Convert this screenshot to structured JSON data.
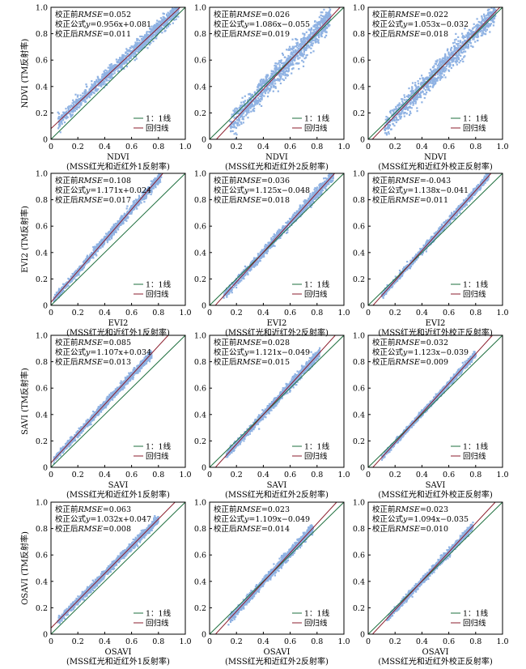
{
  "colors": {
    "scatter": "#8fb2e3",
    "regression": "#8b1d2c",
    "identity": "#1e6f3e",
    "axis": "#000000"
  },
  "chart_data": [
    {
      "type": "scatter",
      "ylabel": "NDVI (TM反射率)",
      "xlabel": "NDVI",
      "xlabel2": "(MSS红光和近红外1反射率)",
      "xlim": [
        0,
        1
      ],
      "ylim": [
        0,
        1
      ],
      "xticks": [
        "0",
        "0.2",
        "0.4",
        "0.6",
        "0.8",
        "1.0"
      ],
      "yticks": [
        "0",
        "0.2",
        "0.4",
        "0.6",
        "0.8",
        "1.0"
      ],
      "ann": [
        {
          "pre": "校正前",
          "em": "RMSE",
          "post": "=0.052"
        },
        {
          "pre": "校正公式",
          "em": "y",
          "post": "=0.956x+0.081"
        },
        {
          "pre": "校正后",
          "em": "RMSE",
          "post": "=0.011"
        }
      ],
      "legend": [
        "1：1线",
        "回归线"
      ],
      "slope": 0.956,
      "intercept": 0.081,
      "cloud": [
        [
          0.05,
          0.06
        ],
        [
          0.95,
          0.06
        ]
      ]
    },
    {
      "type": "scatter",
      "ylabel": "",
      "xlabel": "NDVI",
      "xlabel2": "(MSS红光和近红外2反射率)",
      "xlim": [
        0,
        1
      ],
      "ylim": [
        0,
        1
      ],
      "xticks": [
        "0",
        "0.2",
        "0.4",
        "0.6",
        "0.8",
        "1.0"
      ],
      "yticks": [
        "0",
        "0.2",
        "0.4",
        "0.6",
        "0.8",
        "1.0"
      ],
      "ann": [
        {
          "pre": "校正前",
          "em": "RMSE",
          "post": "=0.026"
        },
        {
          "pre": "校正公式",
          "em": "y",
          "post": "=1.086x−0.055"
        },
        {
          "pre": "校正后",
          "em": "RMSE",
          "post": "=0.019"
        }
      ],
      "legend": [
        "1：1线",
        "回归线"
      ],
      "slope": 1.086,
      "intercept": -0.055,
      "cloud": [
        [
          0.15,
          0.1
        ],
        [
          0.9,
          0.1
        ]
      ]
    },
    {
      "type": "scatter",
      "ylabel": "",
      "xlabel": "NDVI",
      "xlabel2": "(MSS红光和近红外校正反射率)",
      "xlim": [
        0,
        1
      ],
      "ylim": [
        0,
        1
      ],
      "xticks": [
        "0",
        "0.2",
        "0.4",
        "0.6",
        "0.8",
        "1.0"
      ],
      "yticks": [
        "0",
        "0.2",
        "0.4",
        "0.6",
        "0.8",
        "1.0"
      ],
      "ann": [
        {
          "pre": "校正前",
          "em": "RMSE",
          "post": "=0.022"
        },
        {
          "pre": "校正公式",
          "em": "y",
          "post": "=1.053x−0.032"
        },
        {
          "pre": "校正后",
          "em": "RMSE",
          "post": "=0.018"
        }
      ],
      "legend": [
        "1：1线",
        "回归线"
      ],
      "slope": 1.053,
      "intercept": -0.032,
      "cloud": [
        [
          0.12,
          0.09
        ],
        [
          0.95,
          0.09
        ]
      ]
    },
    {
      "type": "scatter",
      "ylabel": "EVI2 (TM反射率)",
      "xlabel": "EVI2",
      "xlabel2": "(MSS红光和近红外1反射率)",
      "xlim": [
        0,
        1
      ],
      "ylim": [
        0,
        1
      ],
      "xticks": [
        "0",
        "0.2",
        "0.4",
        "0.6",
        "0.8",
        "1.0"
      ],
      "yticks": [
        "0",
        "0.2",
        "0.4",
        "0.6",
        "0.8",
        "1.0"
      ],
      "ann": [
        {
          "pre": "校正前",
          "em": "RMSE",
          "post": "=0.108"
        },
        {
          "pre": "校正公式",
          "em": "y",
          "post": "=1.171x+0.024"
        },
        {
          "pre": "校正后",
          "em": "RMSE",
          "post": "=0.017"
        }
      ],
      "legend": [
        "1：1线",
        "回归线"
      ],
      "slope": 1.171,
      "intercept": 0.024,
      "cloud": [
        [
          0.02,
          0.03
        ],
        [
          0.82,
          0.04
        ]
      ]
    },
    {
      "type": "scatter",
      "ylabel": "",
      "xlabel": "EVI2",
      "xlabel2": "(MSS红光和近红外2反射率)",
      "xlim": [
        0,
        1
      ],
      "ylim": [
        0,
        1
      ],
      "xticks": [
        "0",
        "0.2",
        "0.4",
        "0.6",
        "0.8",
        "1.0"
      ],
      "yticks": [
        "0",
        "0.2",
        "0.4",
        "0.6",
        "0.8",
        "1.0"
      ],
      "ann": [
        {
          "pre": "校正前",
          "em": "RMSE",
          "post": "=0.036"
        },
        {
          "pre": "校正公式",
          "em": "y",
          "post": "=1.125x−0.048"
        },
        {
          "pre": "校正后",
          "em": "RMSE",
          "post": "=0.018"
        }
      ],
      "legend": [
        "1：1线",
        "回归线"
      ],
      "slope": 1.125,
      "intercept": -0.048,
      "cloud": [
        [
          0.1,
          0.035
        ],
        [
          0.92,
          0.045
        ]
      ]
    },
    {
      "type": "scatter",
      "ylabel": "",
      "xlabel": "EVI2",
      "xlabel2": "(MSS红光和近红外校正反射率)",
      "xlim": [
        0,
        1
      ],
      "ylim": [
        0,
        1
      ],
      "xticks": [
        "0",
        "0.2",
        "0.4",
        "0.6",
        "0.8",
        "1.0"
      ],
      "yticks": [
        "0",
        "0.2",
        "0.4",
        "0.6",
        "0.8",
        "1.0"
      ],
      "ann": [
        {
          "pre": "校正前",
          "em": "RMSE",
          "post": "=-0.043"
        },
        {
          "pre": "校正公式",
          "em": "y",
          "post": "=1.138x−0.041"
        },
        {
          "pre": "校正后",
          "em": "RMSE",
          "post": "=0.011"
        }
      ],
      "legend": [
        "1：1线",
        "回归线"
      ],
      "slope": 1.138,
      "intercept": -0.041,
      "cloud": [
        [
          0.1,
          0.025
        ],
        [
          0.9,
          0.03
        ]
      ]
    },
    {
      "type": "scatter",
      "ylabel": "SAVI (TM反射率)",
      "xlabel": "SAVI",
      "xlabel2": "(MSS红光和近红外1反射率)",
      "xlim": [
        0,
        1
      ],
      "ylim": [
        0,
        1
      ],
      "xticks": [
        "0",
        "0.2",
        "0.4",
        "0.6",
        "0.8",
        "1.0"
      ],
      "yticks": [
        "0",
        "0.2",
        "0.4",
        "0.6",
        "0.8",
        "1.0"
      ],
      "ann": [
        {
          "pre": "校正前",
          "em": "RMSE",
          "post": "=0.085"
        },
        {
          "pre": "校正公式",
          "em": "y",
          "post": "=1.107x+0.034"
        },
        {
          "pre": "校正后",
          "em": "RMSE",
          "post": "=0.013"
        }
      ],
      "legend": [
        "1：1线",
        "回归线"
      ],
      "slope": 1.107,
      "intercept": 0.034,
      "cloud": [
        [
          0.02,
          0.025
        ],
        [
          0.75,
          0.035
        ]
      ]
    },
    {
      "type": "scatter",
      "ylabel": "",
      "xlabel": "SAVI",
      "xlabel2": "(MSS红光和近红外2反射率)",
      "xlim": [
        0,
        1
      ],
      "ylim": [
        0,
        1
      ],
      "xticks": [
        "0",
        "0.2",
        "0.4",
        "0.6",
        "0.8",
        "1.0"
      ],
      "yticks": [
        "0",
        "0.2",
        "0.4",
        "0.6",
        "0.8",
        "1.0"
      ],
      "ann": [
        {
          "pre": "校正前",
          "em": "RMSE",
          "post": "=0.028"
        },
        {
          "pre": "校正公式",
          "em": "y",
          "post": "=1.121x−0.049"
        },
        {
          "pre": "校正后",
          "em": "RMSE",
          "post": "=0.015"
        }
      ],
      "legend": [
        "1：1线",
        "回归线"
      ],
      "slope": 1.121,
      "intercept": -0.049,
      "cloud": [
        [
          0.12,
          0.03
        ],
        [
          0.82,
          0.04
        ]
      ]
    },
    {
      "type": "scatter",
      "ylabel": "",
      "xlabel": "SAVI",
      "xlabel2": "(MSS红光和近红外校正反射率)",
      "xlim": [
        0,
        1
      ],
      "ylim": [
        0,
        1
      ],
      "xticks": [
        "0",
        "0.2",
        "0.4",
        "0.6",
        "0.8",
        "1.0"
      ],
      "yticks": [
        "0",
        "0.2",
        "0.4",
        "0.6",
        "0.8",
        "1.0"
      ],
      "ann": [
        {
          "pre": "校正前",
          "em": "RMSE",
          "post": "=0.032"
        },
        {
          "pre": "校正公式",
          "em": "y",
          "post": "=1.123x−0.039"
        },
        {
          "pre": "校正后",
          "em": "RMSE",
          "post": "=0.009"
        }
      ],
      "legend": [
        "1：1线",
        "回归线"
      ],
      "slope": 1.123,
      "intercept": -0.039,
      "cloud": [
        [
          0.1,
          0.02
        ],
        [
          0.8,
          0.025
        ]
      ]
    },
    {
      "type": "scatter",
      "ylabel": "OSAVI (TM反射率)",
      "xlabel": "OSAVI",
      "xlabel2": "(MSS红光和近红外1反射率)",
      "xlim": [
        0,
        1
      ],
      "ylim": [
        0,
        1
      ],
      "xticks": [
        "0",
        "0.2",
        "0.4",
        "0.6",
        "0.8",
        "1.0"
      ],
      "yticks": [
        "0",
        "0.2",
        "0.4",
        "0.6",
        "0.8",
        "1.0"
      ],
      "ann": [
        {
          "pre": "校正前",
          "em": "RMSE",
          "post": "=0.063"
        },
        {
          "pre": "校正公式",
          "em": "y",
          "post": "=1.032x+0.047"
        },
        {
          "pre": "校正后",
          "em": "RMSE",
          "post": "=0.008"
        }
      ],
      "legend": [
        "1：1线",
        "回归线"
      ],
      "slope": 1.032,
      "intercept": 0.047,
      "cloud": [
        [
          0.05,
          0.03
        ],
        [
          0.8,
          0.035
        ]
      ]
    },
    {
      "type": "scatter",
      "ylabel": "",
      "xlabel": "OSAVI",
      "xlabel2": "(MSS红光和近红外2反射率)",
      "xlim": [
        0,
        1
      ],
      "ylim": [
        0,
        1
      ],
      "xticks": [
        "0",
        "0.2",
        "0.4",
        "0.6",
        "0.8",
        "1.0"
      ],
      "yticks": [
        "0",
        "0.2",
        "0.4",
        "0.6",
        "0.8",
        "1.0"
      ],
      "ann": [
        {
          "pre": "校正前",
          "em": "RMSE",
          "post": "=0.023"
        },
        {
          "pre": "校正公式",
          "em": "y",
          "post": "=1.109x−0.049"
        },
        {
          "pre": "校正后",
          "em": "RMSE",
          "post": "=0.014"
        }
      ],
      "legend": [
        "1：1线",
        "回归线"
      ],
      "slope": 1.109,
      "intercept": -0.049,
      "cloud": [
        [
          0.14,
          0.03
        ],
        [
          0.77,
          0.04
        ]
      ]
    },
    {
      "type": "scatter",
      "ylabel": "",
      "xlabel": "OSAVI",
      "xlabel2": "(MSS红光和近红外校正反射率)",
      "xlim": [
        0,
        1
      ],
      "ylim": [
        0,
        1
      ],
      "xticks": [
        "0",
        "0.2",
        "0.4",
        "0.6",
        "0.8",
        "1.0"
      ],
      "yticks": [
        "0",
        "0.2",
        "0.4",
        "0.6",
        "0.8",
        "1.0"
      ],
      "ann": [
        {
          "pre": "校正前",
          "em": "RMSE",
          "post": "=0.023"
        },
        {
          "pre": "校正公式",
          "em": "y",
          "post": "=1.094x−0.035"
        },
        {
          "pre": "校正后",
          "em": "RMSE",
          "post": "=0.010"
        }
      ],
      "legend": [
        "1：1线",
        "回归线"
      ],
      "slope": 1.094,
      "intercept": -0.035,
      "cloud": [
        [
          0.14,
          0.025
        ],
        [
          0.78,
          0.03
        ]
      ]
    }
  ]
}
